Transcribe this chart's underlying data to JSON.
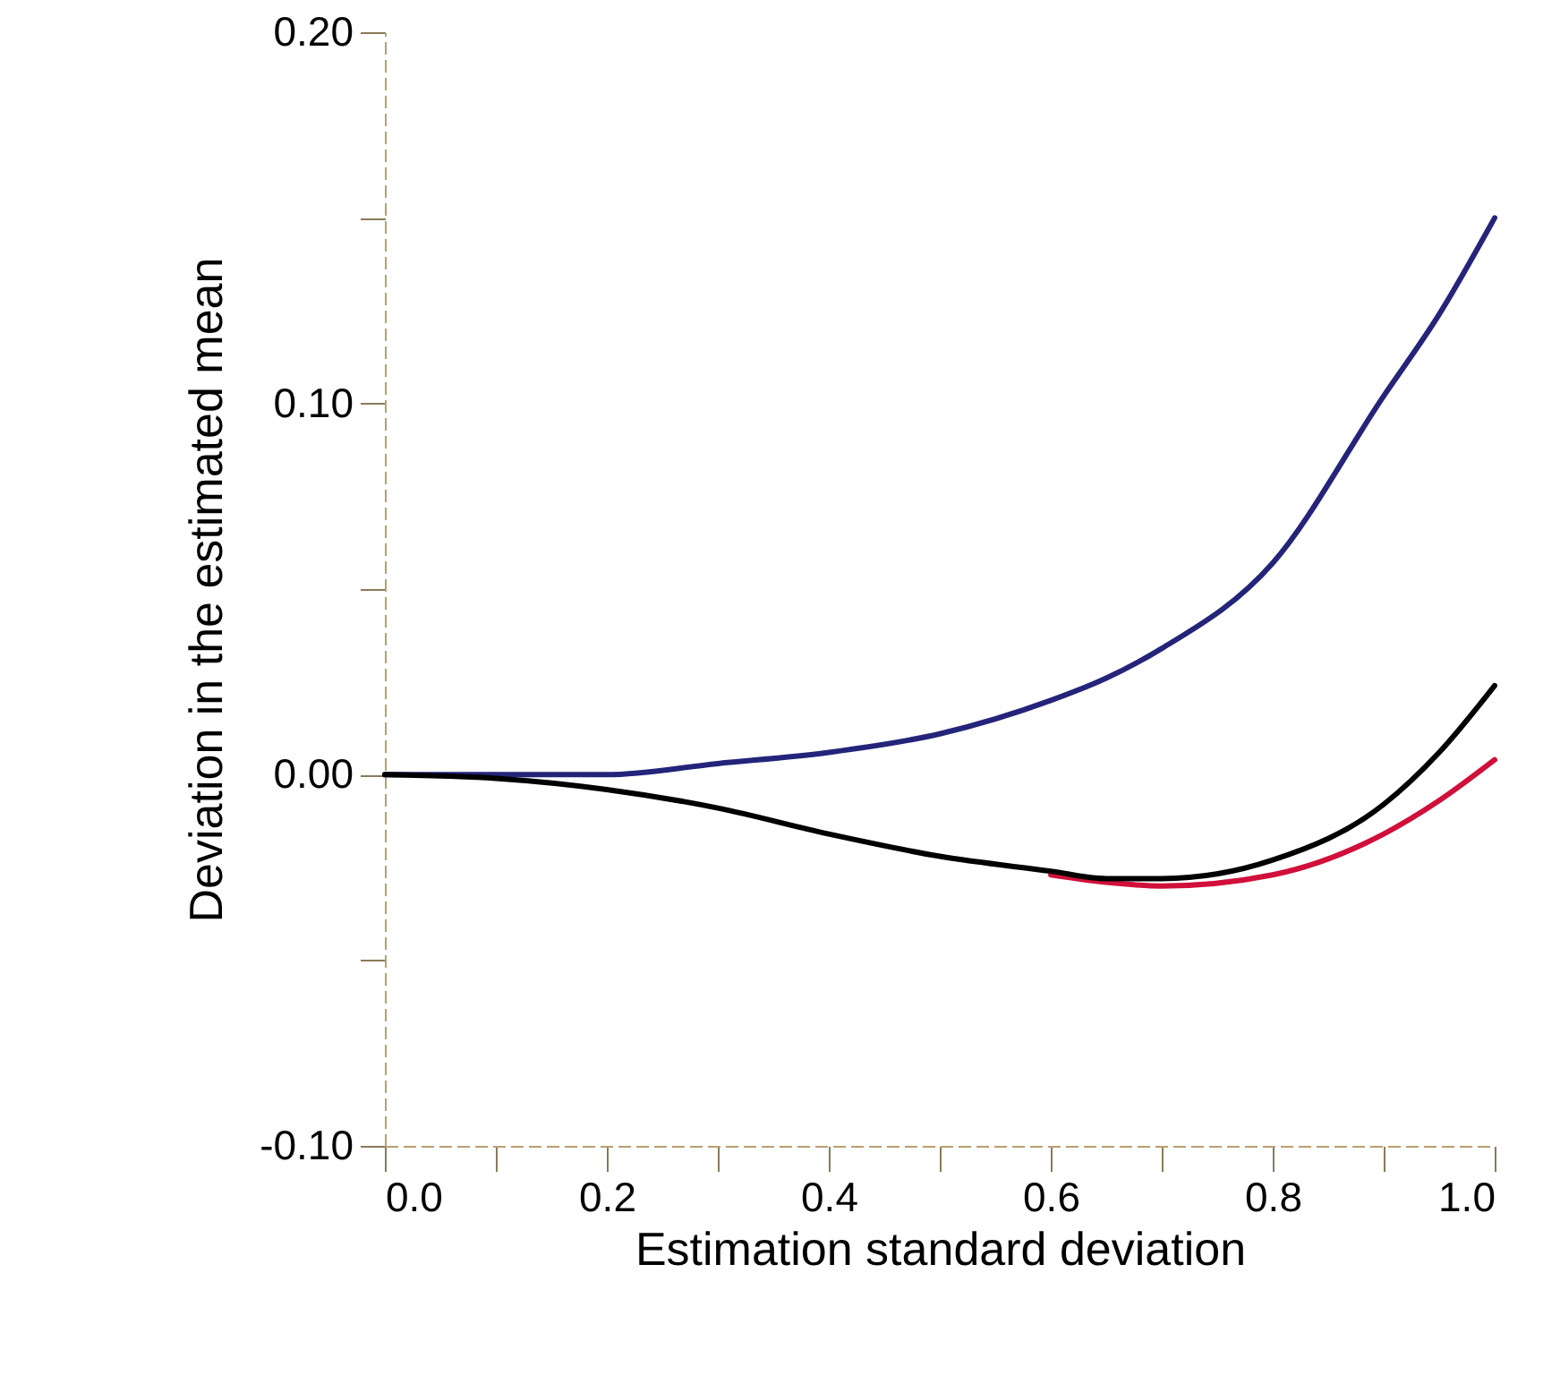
{
  "chart_data": {
    "type": "line",
    "xlabel": "Estimation standard deviation",
    "ylabel": "Deviation in the estimated mean",
    "x": [
      0,
      0.1,
      0.2,
      0.3,
      0.4,
      0.5,
      0.6,
      0.65,
      0.7,
      0.8,
      0.9,
      0.95,
      1.0
    ],
    "series": [
      {
        "color": "#24247a",
        "values": [
          0,
          0,
          0,
          0.003,
          0.006,
          0.011,
          0.02,
          0.026,
          0.034,
          0.057,
          0.102,
          0.124,
          0.15
        ]
      },
      {
        "color": "#d0103a",
        "x": [
          0.6,
          0.65,
          0.7,
          0.8,
          0.9,
          0.95,
          1.0
        ],
        "values": [
          -0.027,
          -0.029,
          -0.03,
          -0.027,
          -0.016,
          -0.007,
          0.004
        ]
      },
      {
        "color": "#000000",
        "values": [
          0,
          -0.001,
          -0.004,
          -0.009,
          -0.016,
          -0.022,
          -0.026,
          -0.028,
          -0.028,
          -0.023,
          -0.008,
          0.006,
          0.024
        ]
      }
    ],
    "xlim": [
      0,
      1.0
    ],
    "ylim": [
      -0.1,
      0.2
    ],
    "xticks": [
      {
        "value": 0,
        "label": "0.0"
      },
      {
        "value": 0.1,
        "label": null
      },
      {
        "value": 0.2,
        "label": "0.2"
      },
      {
        "value": 0.3,
        "label": null
      },
      {
        "value": 0.4,
        "label": "0.4"
      },
      {
        "value": 0.5,
        "label": null
      },
      {
        "value": 0.6,
        "label": "0.6"
      },
      {
        "value": 0.7,
        "label": null
      },
      {
        "value": 0.8,
        "label": "0.8"
      },
      {
        "value": 0.9,
        "label": null
      },
      {
        "value": 1.0,
        "label": "1.0"
      }
    ],
    "yticks": [
      {
        "value": -0.1,
        "label": "-0.10"
      },
      {
        "value": -0.05,
        "label": null
      },
      {
        "value": 0,
        "label": "0.00"
      },
      {
        "value": 0.05,
        "label": null
      },
      {
        "value": 0.1,
        "label": "0.10"
      },
      {
        "value": 0.15,
        "label": null
      },
      {
        "value": 0.2,
        "label": "0.20"
      }
    ],
    "grid": false,
    "marker": "none",
    "line_style": "solid"
  }
}
